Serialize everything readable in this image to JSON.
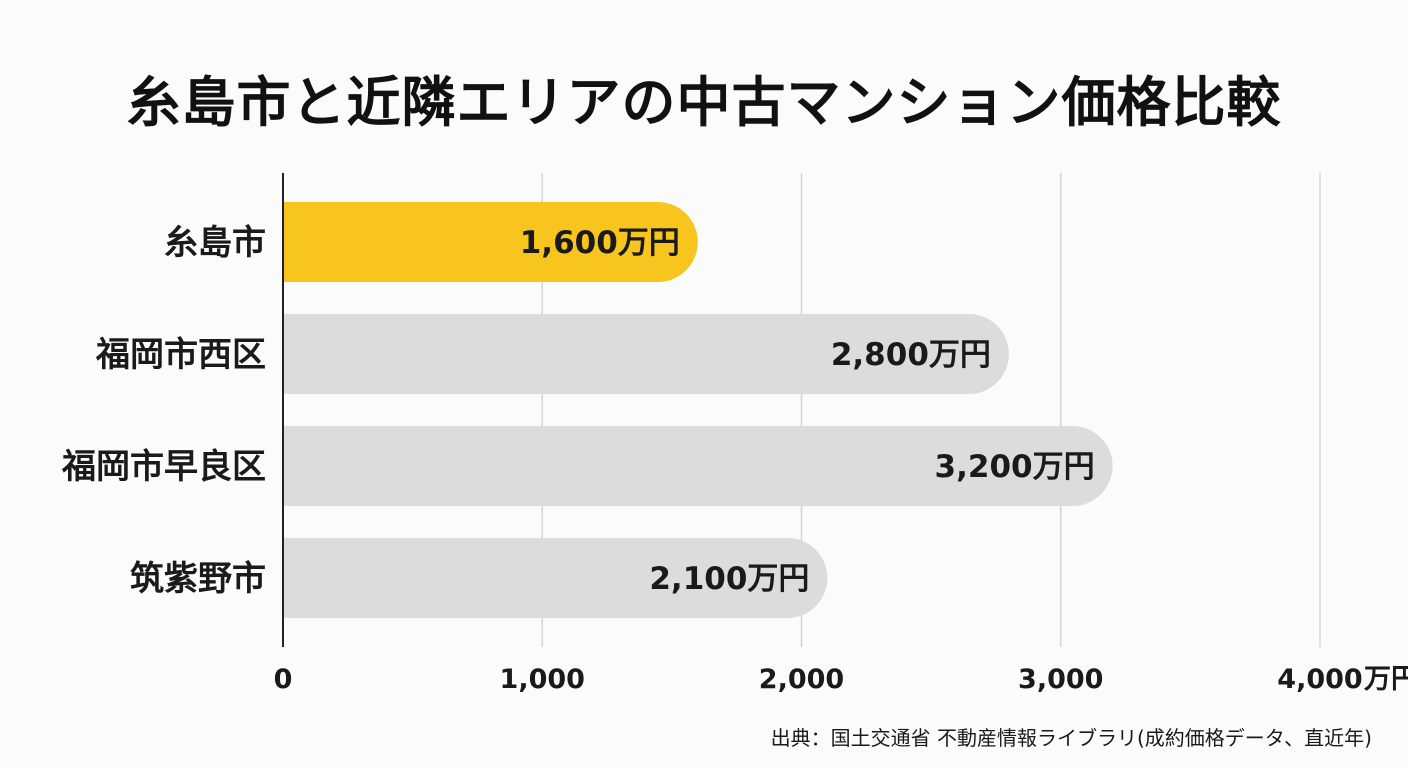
{
  "chart_data": {
    "type": "bar",
    "orientation": "horizontal",
    "title": "糸島市と近隣エリアの中古マンション価格比較",
    "categories": [
      "糸島市",
      "福岡市西区",
      "福岡市早良区",
      "筑紫野市"
    ],
    "values": [
      1600,
      2800,
      3200,
      2100
    ],
    "value_labels": [
      "1,600万円",
      "2,800万円",
      "3,200万円",
      "2,100万円"
    ],
    "xlim": [
      0,
      4000
    ],
    "x_ticks": [
      0,
      1000,
      2000,
      3000,
      4000
    ],
    "x_tick_labels": [
      "0",
      "1,000",
      "2,000",
      "3,000",
      "4,000"
    ],
    "x_unit": "万円",
    "grid": true,
    "legend": "none",
    "colors": {
      "highlight": "#f7c51e",
      "default": "#dcdcdc",
      "grid": "#d4d4d4",
      "axis": "#222222"
    },
    "highlight_index": 0
  },
  "source": "出典：国土交通省 不動産情報ライブラリ(成約価格データ、直近年)"
}
